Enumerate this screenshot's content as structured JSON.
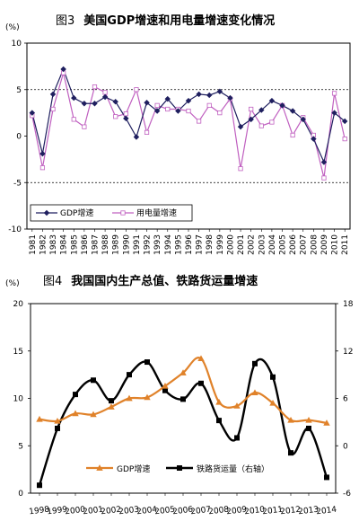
{
  "figures": [
    {
      "number": "图3",
      "title": "美国GDP增速和用电量增速变化情况"
    },
    {
      "number": "图4",
      "title": "我国国内生产总值、铁路货运量增速"
    }
  ],
  "colors": {
    "gdp_fig3": "#1f1f5f",
    "power_fig3": "#c060c0",
    "gdp_fig4": "#e0822a",
    "rail_fig4": "#000000"
  },
  "chart_data": [
    {
      "type": "line",
      "title": "图3 美国GDP增速和用电量增速变化情况",
      "ylabel": "(%)",
      "ylim": [
        -10,
        10
      ],
      "yticks": [
        "10",
        "5",
        "0",
        "-5",
        "-10"
      ],
      "reference_lines": [
        5,
        -5
      ],
      "grid": false,
      "legend_position": "bottom-left",
      "categories": [
        "1981",
        "1982",
        "1983",
        "1984",
        "1985",
        "1986",
        "1987",
        "1988",
        "1989",
        "1990",
        "1991",
        "1992",
        "1993",
        "1994",
        "1995",
        "1996",
        "1997",
        "1998",
        "1999",
        "2000",
        "2001",
        "2002",
        "2003",
        "2004",
        "2005",
        "2006",
        "2007",
        "2008",
        "2009",
        "2010",
        "2011"
      ],
      "series": [
        {
          "name": "GDP增速",
          "marker": "diamond",
          "values": [
            2.5,
            -1.9,
            4.5,
            7.2,
            4.1,
            3.5,
            3.5,
            4.2,
            3.7,
            1.9,
            -0.1,
            3.6,
            2.7,
            4.0,
            2.7,
            3.8,
            4.5,
            4.4,
            4.8,
            4.1,
            1.0,
            1.8,
            2.8,
            3.8,
            3.3,
            2.7,
            1.8,
            -0.3,
            -2.8,
            2.5,
            1.6
          ]
        },
        {
          "name": "用电量增速",
          "marker": "square",
          "values": [
            2.2,
            -3.4,
            2.9,
            6.8,
            1.8,
            1.0,
            5.3,
            4.7,
            2.1,
            2.4,
            5.0,
            0.4,
            3.3,
            2.9,
            2.9,
            2.7,
            1.6,
            3.3,
            2.5,
            4.0,
            -3.5,
            2.9,
            1.1,
            1.5,
            3.3,
            0.1,
            2.0,
            0.1,
            -4.5,
            4.6,
            -0.3
          ]
        }
      ]
    },
    {
      "type": "line",
      "title": "图4 我国国内生产总值、铁路货运量增速",
      "ylabel": "(%)",
      "ylim_left": [
        0,
        20
      ],
      "ylim_right": [
        -6,
        18
      ],
      "yticks_left": [
        "20",
        "15",
        "10",
        "5",
        "0"
      ],
      "yticks_right": [
        "18",
        "12",
        "6",
        "0",
        "-6"
      ],
      "grid": false,
      "legend_position": "bottom",
      "categories": [
        "1998",
        "1999",
        "2000",
        "2001",
        "2002",
        "2003",
        "2004",
        "2005",
        "2006",
        "2007",
        "2008",
        "2009",
        "2010",
        "2011",
        "2012",
        "2013",
        "2014"
      ],
      "series": [
        {
          "name": "GDP增速",
          "axis": "left",
          "marker": "triangle",
          "values": [
            7.8,
            7.6,
            8.4,
            8.3,
            9.1,
            10.0,
            10.1,
            11.3,
            12.7,
            14.2,
            9.6,
            9.2,
            10.6,
            9.5,
            7.7,
            7.7,
            7.4
          ]
        },
        {
          "name": "铁路货运量（右轴）",
          "axis": "right",
          "marker": "square",
          "values": [
            -5.0,
            2.2,
            6.5,
            8.3,
            5.7,
            9.0,
            10.6,
            7.0,
            5.9,
            7.9,
            3.2,
            1.0,
            10.4,
            8.7,
            -0.9,
            2.2,
            -4.0
          ]
        }
      ]
    }
  ]
}
